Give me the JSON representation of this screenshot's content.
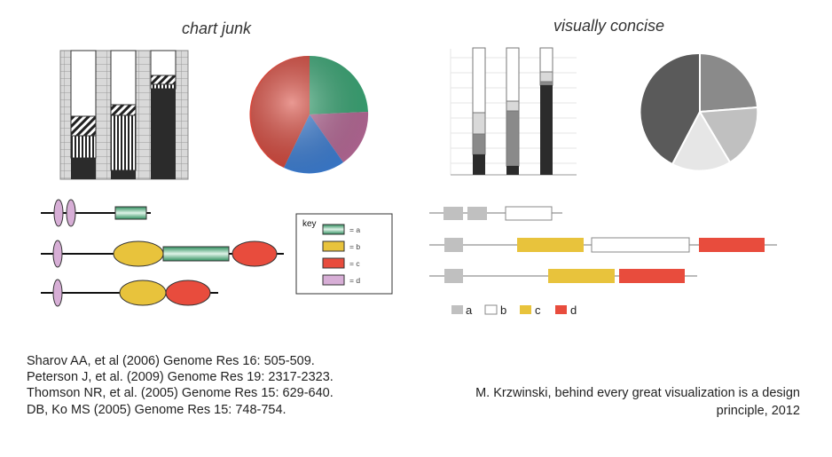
{
  "left_panel": {
    "title": "chart junk",
    "key": {
      "heading": "key",
      "items": [
        {
          "label": "= a",
          "color": "#3aa876"
        },
        {
          "label": "= b",
          "color": "#e8c33c"
        },
        {
          "label": "= c",
          "color": "#e84c3d"
        },
        {
          "label": "= d",
          "color": "#d7aed6"
        }
      ]
    }
  },
  "right_panel": {
    "title": "visually concise",
    "legend": [
      {
        "label": "a",
        "color": "#c0c0c0"
      },
      {
        "label": "b",
        "color": "#ffffff"
      },
      {
        "label": "c",
        "color": "#e8c33c"
      },
      {
        "label": "d",
        "color": "#e84c3d"
      }
    ]
  },
  "references": [
    "Sharov AA, et al (2006) Genome Res 16: 505-509.",
    "Peterson J, et al. (2009) Genome Res 19: 2317-2323.",
    "Thomson NR, et al. (2005) Genome Res 15: 629-640.",
    "DB, Ko MS (2005) Genome Res 15: 748-754."
  ],
  "credit": {
    "line1": "M. Krzwinski, behind every great visualization is a design",
    "line2": "principle, 2012"
  },
  "colors": {
    "teal": "#3aa876",
    "yellow": "#e8c33c",
    "red": "#e84c3d",
    "pink": "#d7aed6",
    "dark": "#2b2b2b",
    "mid_gray": "#8a8a8a",
    "light_gray": "#c0c0c0"
  }
}
